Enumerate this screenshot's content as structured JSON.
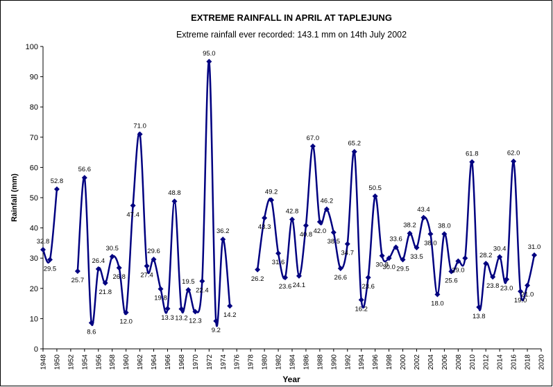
{
  "chart_data": {
    "type": "line",
    "title": "EXTREME RAINFALL IN APRIL AT TAPLEJUNG",
    "subtitle": "Extreme rainfall ever recorded: 143.1 mm on 14th July 2002",
    "x_label": "Year",
    "y_label": "Rainfall (mm)",
    "x": [
      1948,
      1949,
      1950,
      1951,
      1952,
      1953,
      1954,
      1955,
      1956,
      1957,
      1958,
      1959,
      1960,
      1961,
      1962,
      1963,
      1964,
      1965,
      1966,
      1967,
      1968,
      1969,
      1970,
      1971,
      1972,
      1973,
      1974,
      1975,
      1976,
      1977,
      1978,
      1979,
      1980,
      1981,
      1982,
      1983,
      1984,
      1985,
      1986,
      1987,
      1988,
      1989,
      1990,
      1991,
      1992,
      1993,
      1994,
      1995,
      1996,
      1997,
      1998,
      1999,
      2000,
      2001,
      2002,
      2003,
      2004,
      2005,
      2006,
      2007,
      2008,
      2009,
      2010,
      2011,
      2012,
      2013,
      2014,
      2015,
      2016,
      2017,
      2018,
      2019
    ],
    "series": [
      {
        "name": "Rainfall",
        "color": "#000080",
        "values": [
          32.8,
          29.5,
          52.8,
          null,
          null,
          25.7,
          56.6,
          8.6,
          26.4,
          21.8,
          30.5,
          26.8,
          12.0,
          47.4,
          71.0,
          27.4,
          29.6,
          19.8,
          13.3,
          48.8,
          13.2,
          19.5,
          12.3,
          22.4,
          95.0,
          9.2,
          36.2,
          14.2,
          null,
          null,
          null,
          26.2,
          43.3,
          49.2,
          31.6,
          23.6,
          42.8,
          24.1,
          40.8,
          67.0,
          42.0,
          46.2,
          38.5,
          26.6,
          34.7,
          65.2,
          16.2,
          23.6,
          50.5,
          30.8,
          30.0,
          33.6,
          29.5,
          38.2,
          33.5,
          43.4,
          38.0,
          18.0,
          38.0,
          25.6,
          29.0,
          30.0,
          61.8,
          13.8,
          28.2,
          23.8,
          30.4,
          23.0,
          62.0,
          19.0,
          21.0,
          31.0
        ],
        "value_labels": [
          "32.8",
          "29.5",
          "52.8",
          null,
          null,
          "25.7",
          "56.6",
          "8.6",
          "26.4",
          "21.8",
          "30.5",
          "26.8",
          "12.0",
          "47.4",
          "71.0",
          "27.4",
          "29.6",
          "19.8",
          "13.3",
          "48.8",
          "13.2",
          "19.5",
          "12.3",
          "22.4",
          "95.0",
          "9.2",
          "36.2",
          "14.2",
          null,
          null,
          null,
          "26.2",
          "43.3",
          "49.2",
          "31.6",
          "23.6",
          "42.8",
          "24.1",
          "40.8",
          "67.0",
          "42.0",
          "46.2",
          "38.5",
          "26.6",
          "34.7",
          "65.2",
          "16.2",
          "23.6",
          "50.5",
          "30.8",
          "30.0",
          "33.6",
          "29.5",
          "38.2",
          "33.5",
          "43.4",
          "38.0",
          "18.0",
          "38.0",
          "25.6",
          "29.0",
          null,
          "61.8",
          "13.8",
          "28.2",
          "23.8",
          "30.4",
          "23.0",
          "62.0",
          "19.0",
          "21.0",
          "31.0"
        ]
      }
    ],
    "xlim": [
      1948,
      2020
    ],
    "xticks": [
      1948,
      1950,
      1952,
      1954,
      1956,
      1958,
      1960,
      1962,
      1964,
      1966,
      1968,
      1970,
      1972,
      1974,
      1976,
      1978,
      1980,
      1982,
      1984,
      1986,
      1988,
      1990,
      1992,
      1994,
      1996,
      1998,
      2000,
      2002,
      2004,
      2006,
      2008,
      2010,
      2012,
      2014,
      2016,
      2018,
      2020
    ],
    "ylim": [
      0,
      100
    ],
    "yticks": [
      0,
      10,
      20,
      30,
      40,
      50,
      60,
      70,
      80,
      90,
      100
    ],
    "grid": false
  }
}
